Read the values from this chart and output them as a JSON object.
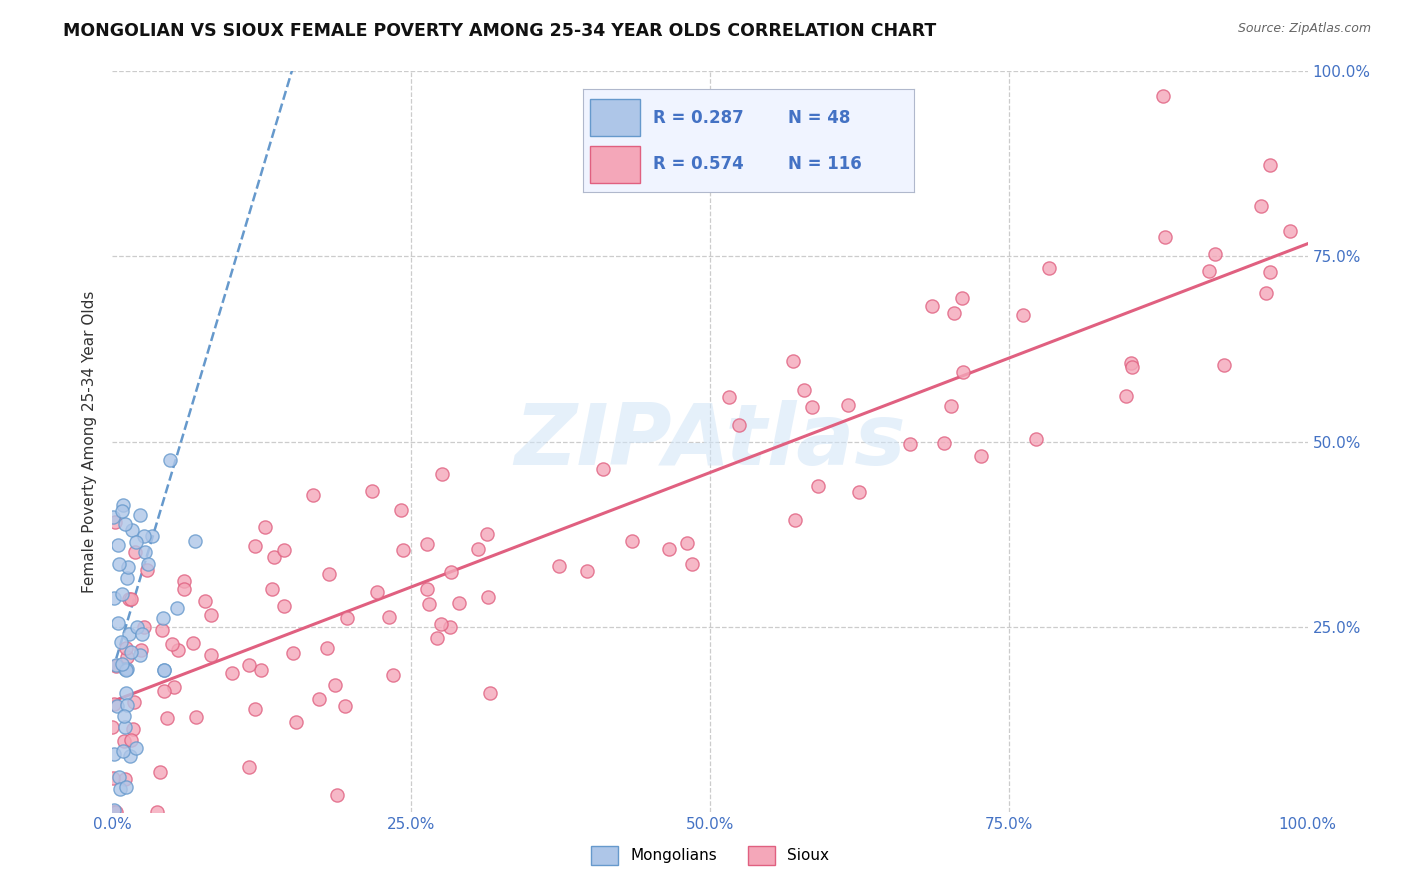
{
  "title": "MONGOLIAN VS SIOUX FEMALE POVERTY AMONG 25-34 YEAR OLDS CORRELATION CHART",
  "source": "Source: ZipAtlas.com",
  "ylabel": "Female Poverty Among 25-34 Year Olds",
  "xlim": [
    0,
    1.0
  ],
  "ylim": [
    0,
    1.0
  ],
  "xtick_labels": [
    "0.0%",
    "25.0%",
    "50.0%",
    "75.0%",
    "100.0%"
  ],
  "xtick_vals": [
    0.0,
    0.25,
    0.5,
    0.75,
    1.0
  ],
  "ytick_labels_right": [
    "100.0%",
    "75.0%",
    "50.0%",
    "25.0%"
  ],
  "ytick_vals": [
    1.0,
    0.75,
    0.5,
    0.25
  ],
  "mongolian_R": 0.287,
  "mongolian_N": 48,
  "sioux_R": 0.574,
  "sioux_N": 116,
  "mongolian_color": "#aec6e8",
  "sioux_color": "#f4a7b9",
  "mongolian_line_color": "#6699cc",
  "sioux_line_color": "#e06080",
  "background_color": "#ffffff",
  "watermark_color": "#d0e4f7",
  "title_color": "#111111",
  "source_color": "#666666",
  "axis_label_color": "#333333",
  "tick_color": "#4472c4",
  "grid_color": "#cccccc",
  "legend_bg": "#f0f4ff"
}
